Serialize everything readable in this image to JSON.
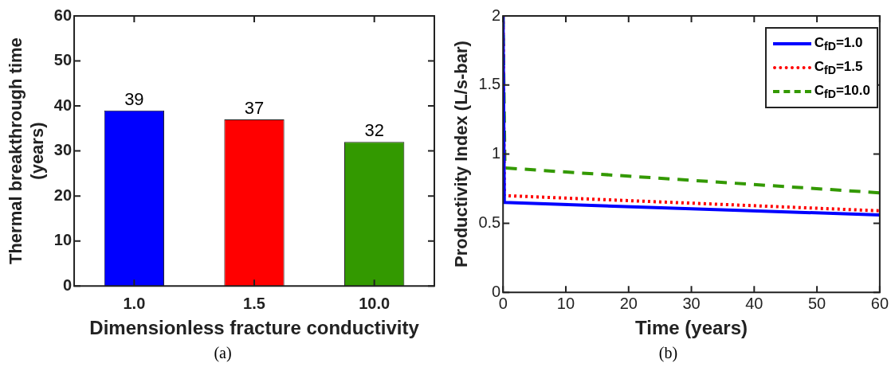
{
  "chart_data": [
    {
      "type": "bar",
      "xlabel": "Dimensionless fracture conductivity",
      "ylabel": "Thermal breakthrough time\n(years)",
      "categories": [
        "1.0",
        "1.5",
        "10.0"
      ],
      "values": [
        39,
        37,
        32
      ],
      "colors": [
        "#0000ff",
        "#ff0000",
        "#339900"
      ],
      "ylim": [
        0,
        60
      ],
      "yticks": [
        0,
        10,
        20,
        30,
        40,
        50,
        60
      ],
      "data_labels": true,
      "annotations": [
        "(a)"
      ]
    },
    {
      "type": "line",
      "xlabel": "Time (years)",
      "ylabel": "Productivity Index (L/s-bar)",
      "xlim": [
        0,
        60
      ],
      "xticks": [
        0,
        10,
        20,
        30,
        40,
        50,
        60
      ],
      "ylim": [
        0,
        2
      ],
      "yticks": [
        0,
        0.5,
        1,
        1.5,
        2
      ],
      "legend": "top right",
      "marker": "none",
      "annotations": [
        "(b)"
      ],
      "series": [
        {
          "name": "C$_{fD}$=1.0",
          "color": "#0000ff",
          "line_style": "solid",
          "x": [
            0,
            0.2,
            60
          ],
          "values": [
            2,
            0.65,
            0.56
          ]
        },
        {
          "name": "C$_{fD}$=1.5",
          "color": "#ff0000",
          "line_style": "dotted",
          "x": [
            0,
            0.2,
            60
          ],
          "values": [
            2,
            0.7,
            0.59
          ]
        },
        {
          "name": "C$_{fD}$=10.0",
          "color": "#339900",
          "line_style": "dashed",
          "x": [
            0,
            0.3,
            60
          ],
          "values": [
            2,
            0.9,
            0.72
          ]
        }
      ]
    }
  ]
}
